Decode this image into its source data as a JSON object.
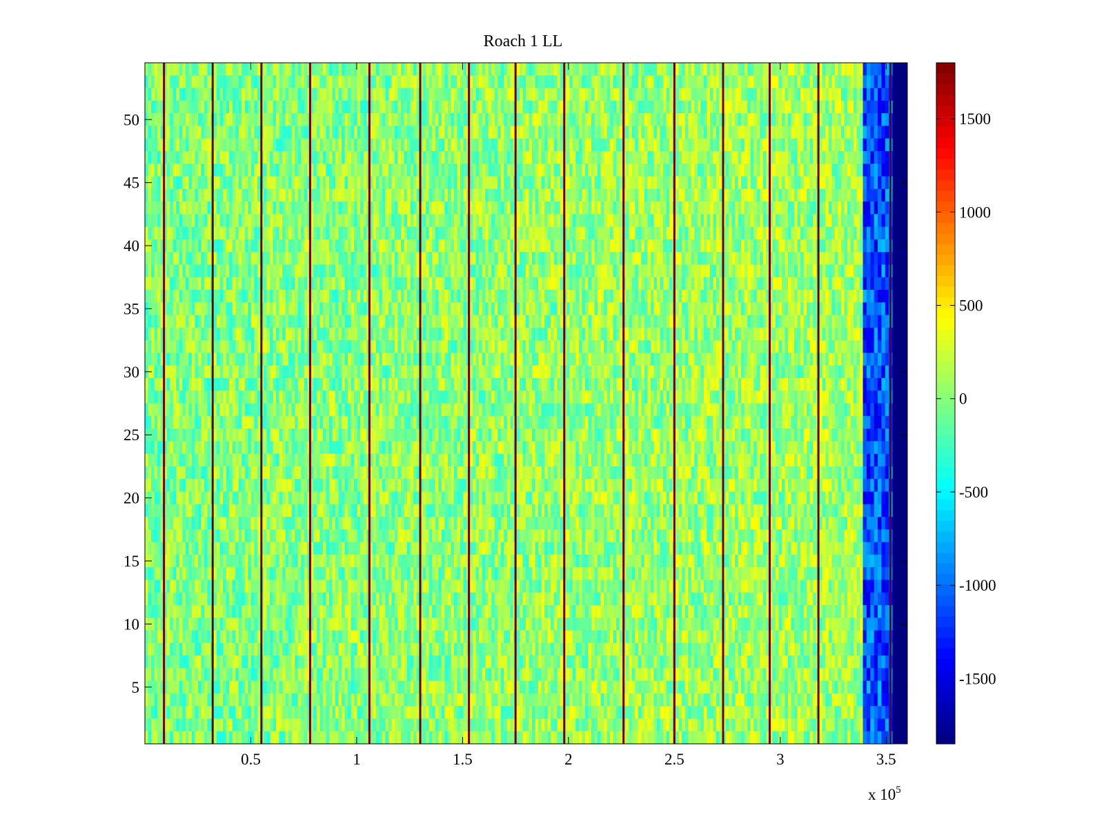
{
  "chart_data": {
    "type": "heatmap",
    "title": "Roach 1 LL",
    "xlabel": "",
    "ylabel": "",
    "x_multiplier_label": {
      "base": "x 10",
      "exponent": "5"
    },
    "xlim": [
      0,
      3.6
    ],
    "ylim": [
      0.5,
      54.5
    ],
    "x_ticks": [
      {
        "value": 0.5,
        "label": "0.5"
      },
      {
        "value": 1,
        "label": "1"
      },
      {
        "value": 1.5,
        "label": "1.5"
      },
      {
        "value": 2,
        "label": "2"
      },
      {
        "value": 2.5,
        "label": "2.5"
      },
      {
        "value": 3,
        "label": "3"
      },
      {
        "value": 3.5,
        "label": "3.5"
      }
    ],
    "y_ticks": [
      {
        "value": 5,
        "label": "5"
      },
      {
        "value": 10,
        "label": "10"
      },
      {
        "value": 15,
        "label": "15"
      },
      {
        "value": 20,
        "label": "20"
      },
      {
        "value": 25,
        "label": "25"
      },
      {
        "value": 30,
        "label": "30"
      },
      {
        "value": 35,
        "label": "35"
      },
      {
        "value": 40,
        "label": "40"
      },
      {
        "value": 45,
        "label": "45"
      },
      {
        "value": 50,
        "label": "50"
      }
    ],
    "rows": 54,
    "colormap": "jet",
    "clim": [
      -1850,
      1800
    ],
    "colorbar": {
      "position": "right",
      "ticks": [
        {
          "value": 1500,
          "label": "1500"
        },
        {
          "value": 1000,
          "label": "1000"
        },
        {
          "value": 500,
          "label": "500"
        },
        {
          "value": 0,
          "label": "0"
        },
        {
          "value": -500,
          "label": "-500"
        },
        {
          "value": -1000,
          "label": "-1000"
        },
        {
          "value": -1500,
          "label": "-1500"
        }
      ]
    },
    "background_value_range": [
      -400,
      350
    ],
    "spike_columns_x": [
      0.09,
      0.32,
      0.55,
      0.78,
      1.06,
      1.3,
      1.53,
      1.75,
      1.98,
      2.26,
      2.5,
      2.73,
      2.95,
      3.18,
      3.52
    ],
    "spike_value": 1800,
    "low_region": {
      "x_start": 3.39,
      "x_end": 3.53,
      "value_range": [
        -1500,
        -700
      ]
    },
    "floor_region": {
      "x_start": 3.53,
      "x_end": 3.6,
      "value": -1850
    },
    "grid": false,
    "legend": "none"
  }
}
